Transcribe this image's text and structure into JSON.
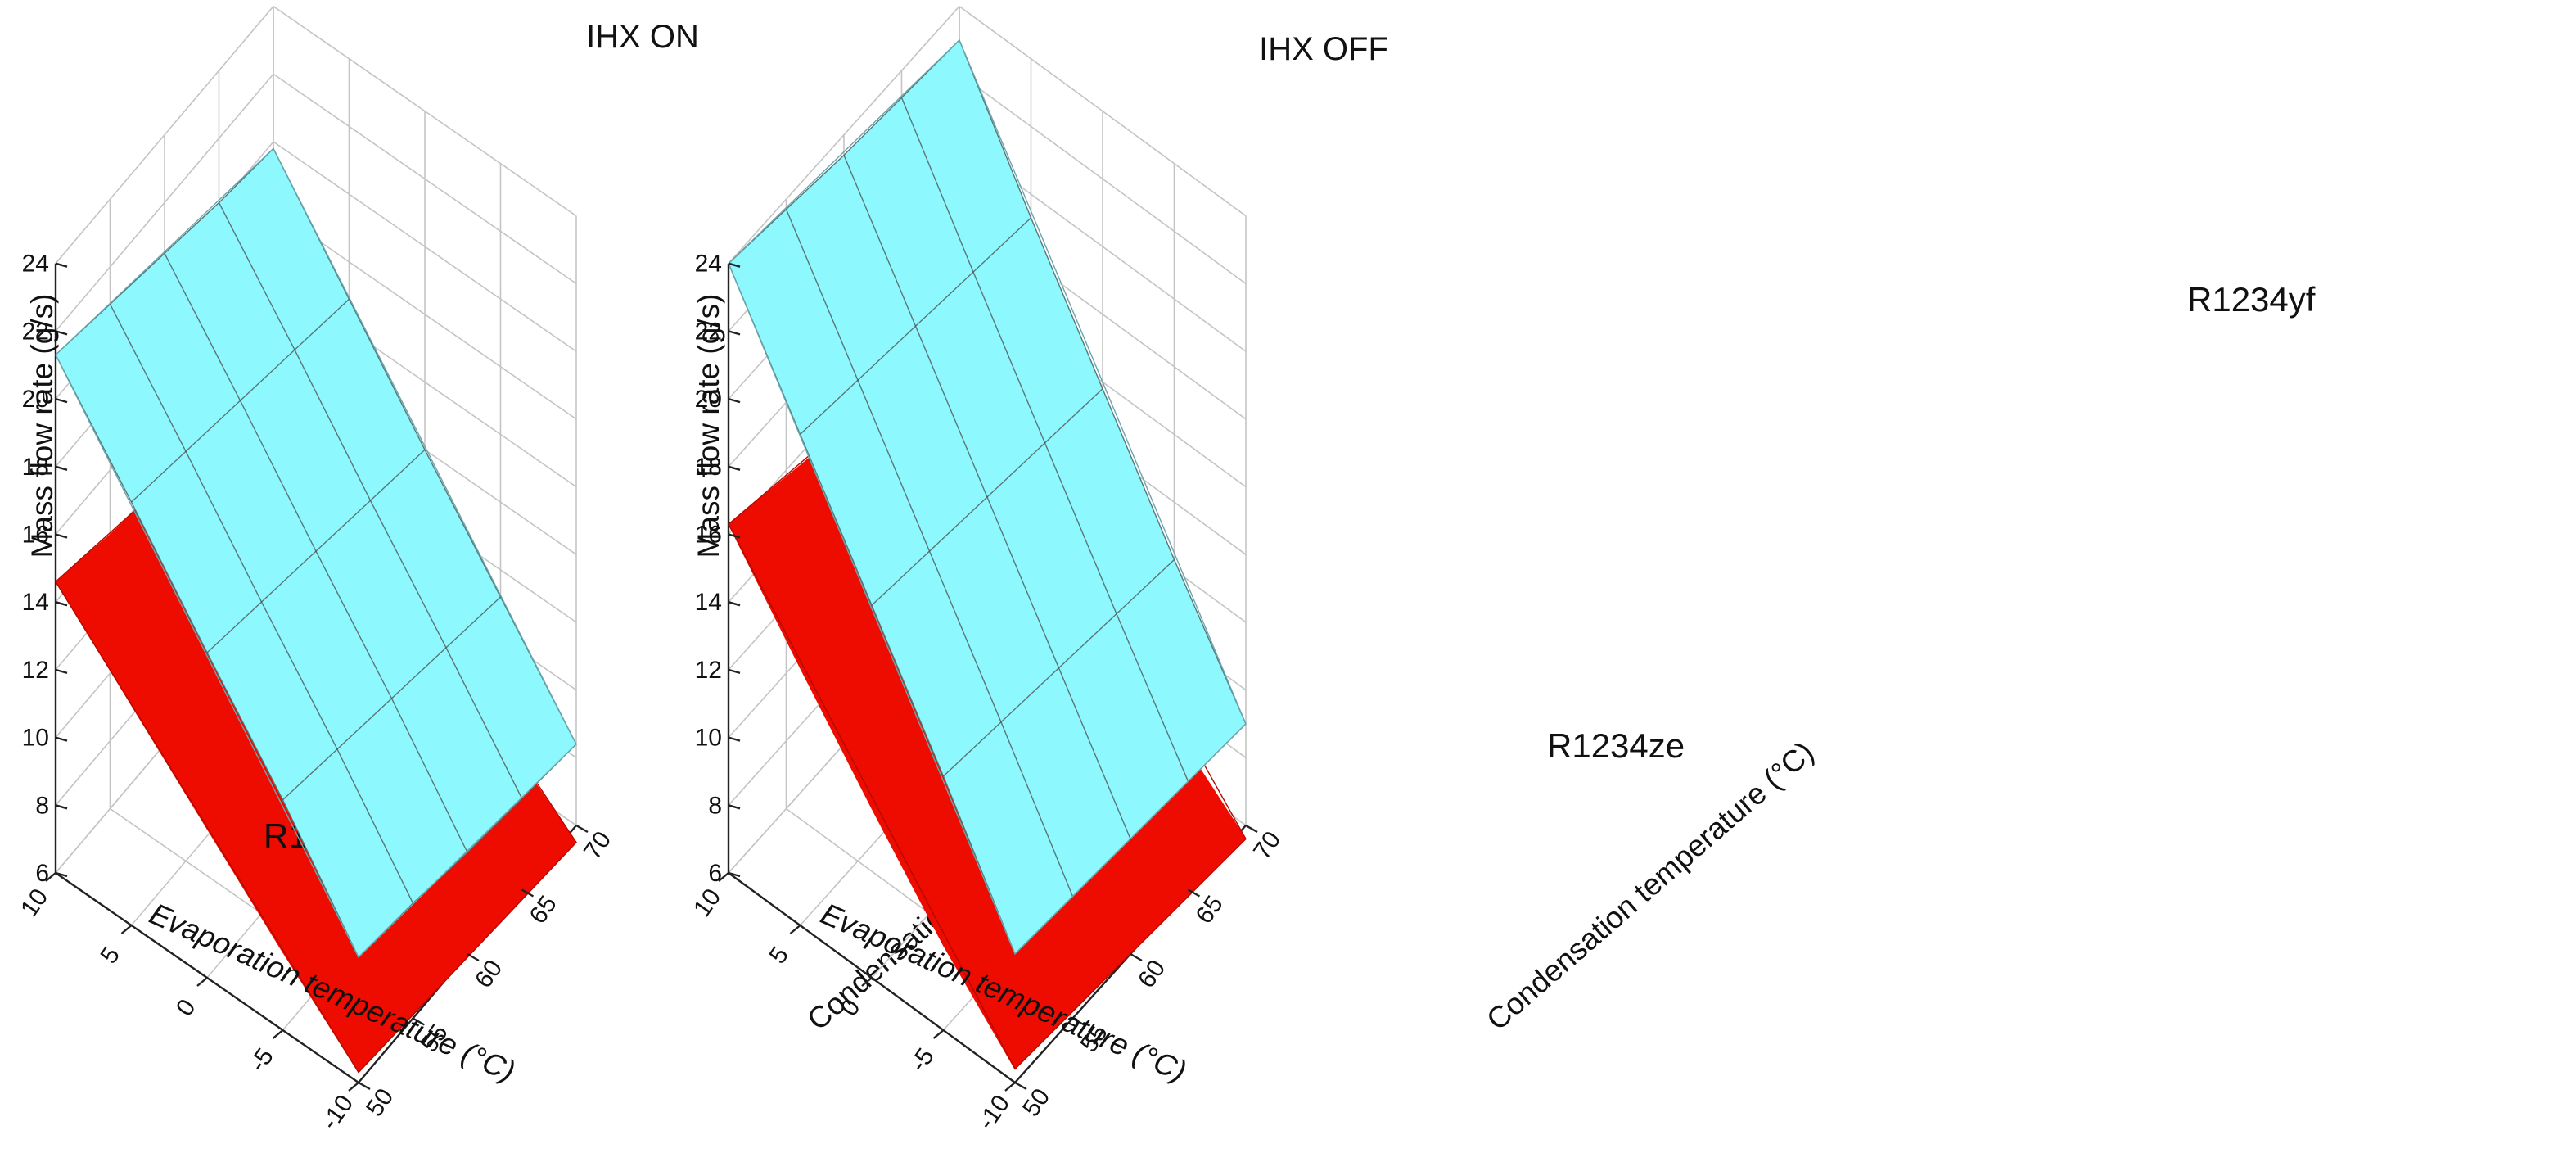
{
  "figure": {
    "panels": [
      "IHX ON",
      "IHX OFF"
    ]
  },
  "colors": {
    "upper_surface": "#8DF9FF",
    "lower_surface": "#EE0C00",
    "grid": "#C4C4C4",
    "axis": "#222222"
  },
  "chart_data": [
    {
      "type": "surface3d",
      "title": "IHX ON",
      "zlabel": "Mass flow rate (g/s)",
      "xlabel": "Evaporation temperature (°C)",
      "ylabel": "Condensation temperature (°C)",
      "zlim": [
        6,
        24
      ],
      "z_ticks": [
        "6",
        "8",
        "10",
        "12",
        "14",
        "16",
        "18",
        "20",
        "22",
        "24"
      ],
      "evap_range": [
        10,
        -10
      ],
      "evap_ticks": [
        "10",
        "5",
        "0",
        "-5",
        "-10"
      ],
      "cond_range": [
        50,
        70
      ],
      "cond_ticks": [
        "50",
        "55",
        "60",
        "65",
        "70"
      ],
      "surfaces": [
        {
          "name": "upper",
          "label": "R1234yf",
          "color": "#8DF9FF",
          "evap": [
            10,
            5,
            0,
            -5,
            -10
          ],
          "cond": [
            50,
            55,
            60,
            65,
            70
          ],
          "z": [
            [
              21.3,
              20.9,
              20.5,
              20.1,
              19.8
            ],
            [
              18.5,
              18.1,
              17.7,
              17.3,
              16.9
            ],
            [
              15.6,
              15.2,
              14.8,
              14.4,
              14.0
            ],
            [
              12.8,
              12.4,
              12.0,
              11.6,
              11.2
            ],
            [
              9.7,
              9.4,
              9.0,
              8.7,
              8.4
            ]
          ]
        },
        {
          "name": "lower",
          "label": "R1234yf",
          "color": "#EE0C00",
          "evap": [
            10,
            5,
            0,
            -5,
            -10
          ],
          "cond": [
            50,
            55,
            60,
            65,
            70
          ],
          "z": [
            [
              14.6,
              14.1,
              13.7,
              13.2,
              12.8
            ],
            [
              12.5,
              12.1,
              11.7,
              11.3,
              10.9
            ],
            [
              10.4,
              10.1,
              9.7,
              9.4,
              9.1
            ],
            [
              8.3,
              8.0,
              7.7,
              7.4,
              7.2
            ],
            [
              6.3,
              6.1,
              5.9,
              5.7,
              5.5
            ]
          ]
        }
      ]
    },
    {
      "type": "surface3d",
      "title": "IHX OFF",
      "zlabel": "Mass flow rate (g/s)",
      "xlabel": "Evaporation temperature (°C)",
      "ylabel": "Condensation temperature (°C)",
      "zlim": [
        6,
        24
      ],
      "z_ticks": [
        "6",
        "8",
        "10",
        "12",
        "14",
        "16",
        "18",
        "20",
        "22",
        "24"
      ],
      "evap_range": [
        10,
        -10
      ],
      "evap_ticks": [
        "10",
        "5",
        "0",
        "-5",
        "-10"
      ],
      "cond_range": [
        50,
        70
      ],
      "cond_ticks": [
        "50",
        "55",
        "60",
        "65",
        "70"
      ],
      "surfaces": [
        {
          "name": "upper",
          "label": "R1234yf",
          "color": "#8DF9FF",
          "evap": [
            10,
            5,
            0,
            -5,
            -10
          ],
          "cond": [
            50,
            55,
            60,
            65,
            70
          ],
          "z": [
            [
              24.0,
              23.7,
              23.4,
              23.2,
              23.0
            ],
            [
              20.5,
              20.2,
              19.9,
              19.6,
              19.3
            ],
            [
              17.0,
              16.7,
              16.4,
              16.1,
              15.8
            ],
            [
              13.5,
              13.2,
              12.9,
              12.6,
              12.3
            ],
            [
              9.8,
              9.6,
              9.4,
              9.2,
              9.0
            ]
          ]
        },
        {
          "name": "lower",
          "label": "R1234ze",
          "color": "#EE0C00",
          "evap": [
            10,
            5,
            0,
            -5,
            -10
          ],
          "cond": [
            50,
            55,
            60,
            65,
            70
          ],
          "z": [
            [
              16.3,
              15.8,
              15.3,
              14.9,
              14.5
            ],
            [
              13.6,
              13.2,
              12.8,
              12.4,
              12.0
            ],
            [
              11.0,
              10.6,
              10.2,
              9.9,
              9.6
            ],
            [
              8.5,
              8.2,
              7.9,
              7.6,
              7.3
            ],
            [
              6.4,
              6.2,
              6.0,
              5.8,
              5.6
            ]
          ]
        }
      ]
    }
  ]
}
